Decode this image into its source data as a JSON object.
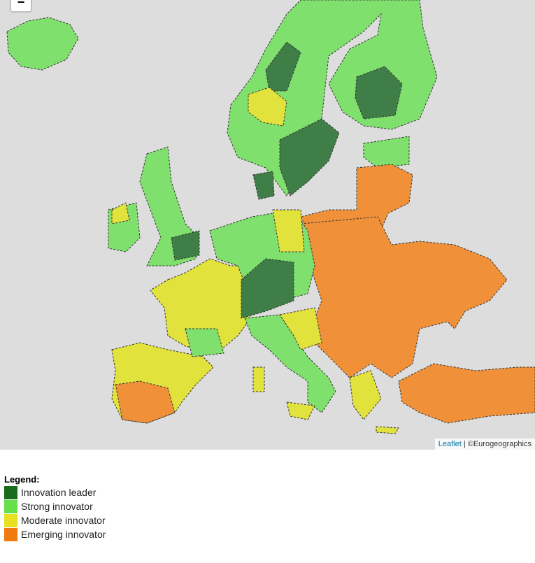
{
  "map": {
    "zoom_out": "−",
    "attribution": {
      "link": "Leaflet",
      "text": "| ©Eurogeographics"
    }
  },
  "legend": {
    "title": "Legend:",
    "items": [
      {
        "label": "Innovation leader",
        "color": "#1a6b1a"
      },
      {
        "label": "Strong innovator",
        "color": "#66e04a"
      },
      {
        "label": "Moderate innovator",
        "color": "#e8e020"
      },
      {
        "label": "Emerging innovator",
        "color": "#f07a10"
      }
    ]
  }
}
